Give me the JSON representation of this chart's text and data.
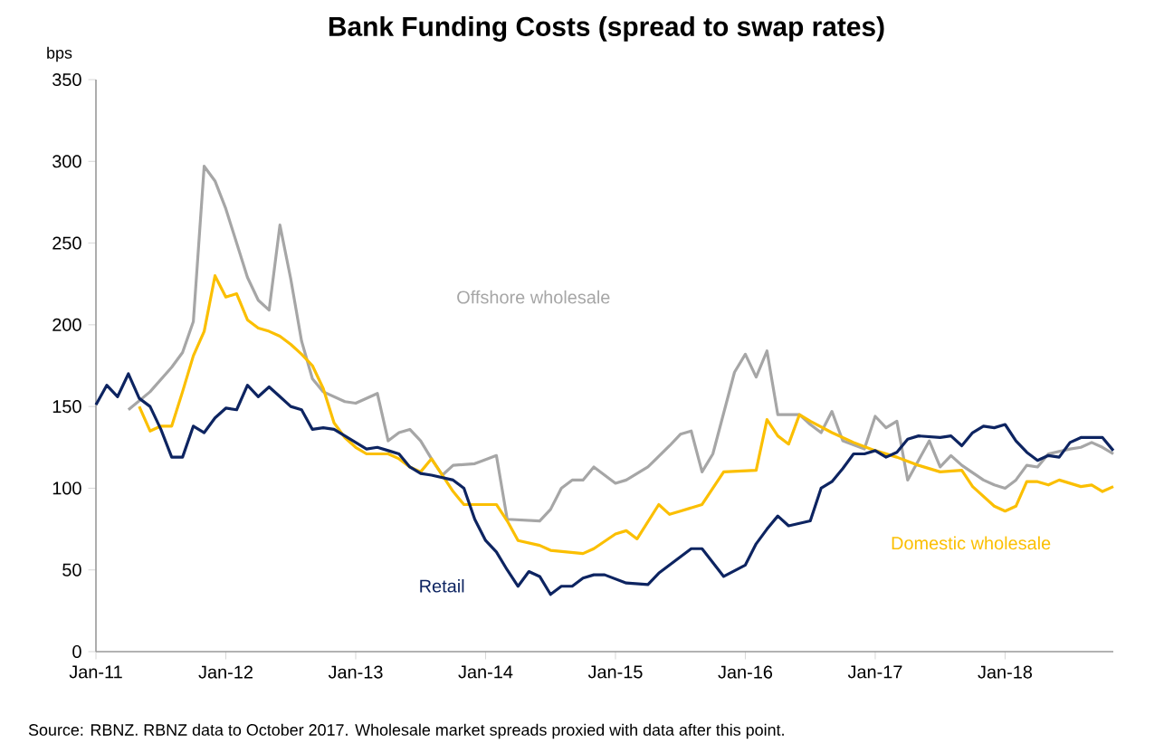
{
  "chart_data": {
    "type": "line",
    "title": "Bank Funding Costs (spread to swap rates)",
    "ylabel": "bps",
    "xlim": [
      "2011-01",
      "2018-11"
    ],
    "ylim": [
      0,
      350
    ],
    "xticks": [
      {
        "value": "2011-01",
        "label": "Jan-11"
      },
      {
        "value": "2012-01",
        "label": "Jan-12"
      },
      {
        "value": "2013-01",
        "label": "Jan-13"
      },
      {
        "value": "2014-01",
        "label": "Jan-14"
      },
      {
        "value": "2015-01",
        "label": "Jan-15"
      },
      {
        "value": "2016-01",
        "label": "Jan-16"
      },
      {
        "value": "2017-01",
        "label": "Jan-17"
      },
      {
        "value": "2018-01",
        "label": "Jan-18"
      }
    ],
    "yticks": [
      0,
      50,
      100,
      150,
      200,
      250,
      300,
      350
    ],
    "grid": false,
    "legend": false,
    "marker": "none",
    "line_style": "solid",
    "series": [
      {
        "name": "Offshore wholesale",
        "color": "#a6a6a6",
        "x": [
          "2011-04",
          "2011-06",
          "2011-08",
          "2011-09",
          "2011-10",
          "2011-11",
          "2011-12",
          "2012-01",
          "2012-02",
          "2012-03",
          "2012-04",
          "2012-05",
          "2012-06",
          "2012-07",
          "2012-08",
          "2012-09",
          "2012-10",
          "2012-12",
          "2013-01",
          "2013-03",
          "2013-04",
          "2013-05",
          "2013-06",
          "2013-07",
          "2013-08",
          "2013-09",
          "2013-10",
          "2013-12",
          "2014-02",
          "2014-03",
          "2014-06",
          "2014-07",
          "2014-08",
          "2014-09",
          "2014-10",
          "2014-11",
          "2015-01",
          "2015-02",
          "2015-04",
          "2015-06",
          "2015-07",
          "2015-08",
          "2015-09",
          "2015-10",
          "2015-12",
          "2016-01",
          "2016-02",
          "2016-03",
          "2016-04",
          "2016-06",
          "2016-07",
          "2016-08",
          "2016-09",
          "2016-10",
          "2016-12",
          "2017-01",
          "2017-02",
          "2017-03",
          "2017-04",
          "2017-06",
          "2017-07",
          "2017-08",
          "2017-09",
          "2017-11",
          "2017-12",
          "2018-01",
          "2018-02",
          "2018-03",
          "2018-04",
          "2018-05",
          "2018-07",
          "2018-08",
          "2018-09",
          "2018-10",
          "2018-11"
        ],
        "values": [
          148,
          159,
          174,
          183,
          202,
          297,
          288,
          271,
          250,
          229,
          215,
          209,
          261,
          228,
          190,
          167,
          159,
          153,
          152,
          158,
          129,
          134,
          136,
          129,
          118,
          108,
          114,
          115,
          120,
          81,
          80,
          87,
          100,
          105,
          105,
          113,
          103,
          105,
          113,
          126,
          133,
          135,
          110,
          121,
          171,
          182,
          168,
          184,
          145,
          145,
          139,
          134,
          147,
          129,
          124,
          144,
          137,
          141,
          105,
          129,
          113,
          120,
          114,
          105,
          102,
          100,
          105,
          114,
          113,
          121,
          124,
          125,
          128,
          125,
          121
        ]
      },
      {
        "name": "Domestic wholesale",
        "color": "#fbbf00",
        "x": [
          "2011-05",
          "2011-06",
          "2011-07",
          "2011-08",
          "2011-09",
          "2011-10",
          "2011-11",
          "2011-12",
          "2012-01",
          "2012-02",
          "2012-03",
          "2012-04",
          "2012-05",
          "2012-06",
          "2012-07",
          "2012-08",
          "2012-09",
          "2012-10",
          "2012-11",
          "2012-12",
          "2013-01",
          "2013-02",
          "2013-04",
          "2013-05",
          "2013-06",
          "2013-07",
          "2013-08",
          "2013-09",
          "2013-10",
          "2013-11",
          "2014-02",
          "2014-03",
          "2014-04",
          "2014-06",
          "2014-07",
          "2014-10",
          "2014-11",
          "2015-01",
          "2015-02",
          "2015-03",
          "2015-05",
          "2015-06",
          "2015-07",
          "2015-09",
          "2015-11",
          "2016-02",
          "2016-03",
          "2016-04",
          "2016-05",
          "2016-06",
          "2016-07",
          "2016-09",
          "2016-11",
          "2017-01",
          "2017-03",
          "2017-05",
          "2017-07",
          "2017-09",
          "2017-10",
          "2017-12",
          "2018-01",
          "2018-02",
          "2018-03",
          "2018-04",
          "2018-05",
          "2018-06",
          "2018-08",
          "2018-09",
          "2018-10",
          "2018-11"
        ],
        "values": [
          150,
          135,
          138,
          138,
          159,
          181,
          196,
          230,
          217,
          219,
          203,
          198,
          196,
          193,
          188,
          182,
          175,
          161,
          140,
          131,
          125,
          121,
          121,
          118,
          113,
          110,
          118,
          108,
          98,
          90,
          90,
          80,
          68,
          65,
          62,
          60,
          63,
          72,
          74,
          69,
          90,
          84,
          86,
          90,
          110,
          111,
          142,
          132,
          127,
          145,
          141,
          134,
          128,
          123,
          119,
          114,
          110,
          111,
          101,
          89,
          86,
          89,
          104,
          104,
          102,
          105,
          101,
          102,
          98,
          101
        ]
      },
      {
        "name": "Retail",
        "color": "#0d2461",
        "x": [
          "2011-01",
          "2011-02",
          "2011-03",
          "2011-04",
          "2011-05",
          "2011-06",
          "2011-07",
          "2011-08",
          "2011-09",
          "2011-10",
          "2011-11",
          "2011-12",
          "2012-01",
          "2012-02",
          "2012-03",
          "2012-04",
          "2012-05",
          "2012-06",
          "2012-07",
          "2012-08",
          "2012-09",
          "2012-10",
          "2012-11",
          "2012-12",
          "2013-01",
          "2013-02",
          "2013-03",
          "2013-04",
          "2013-05",
          "2013-06",
          "2013-07",
          "2013-08",
          "2013-10",
          "2013-11",
          "2013-12",
          "2014-01",
          "2014-02",
          "2014-03",
          "2014-04",
          "2014-05",
          "2014-06",
          "2014-07",
          "2014-08",
          "2014-09",
          "2014-10",
          "2014-11",
          "2014-12",
          "2015-02",
          "2015-04",
          "2015-05",
          "2015-06",
          "2015-08",
          "2015-09",
          "2015-11",
          "2016-01",
          "2016-02",
          "2016-03",
          "2016-04",
          "2016-05",
          "2016-07",
          "2016-08",
          "2016-09",
          "2016-10",
          "2016-11",
          "2016-12",
          "2017-01",
          "2017-02",
          "2017-03",
          "2017-04",
          "2017-05",
          "2017-07",
          "2017-08",
          "2017-09",
          "2017-10",
          "2017-11",
          "2017-12",
          "2018-01",
          "2018-02",
          "2018-03",
          "2018-04",
          "2018-05",
          "2018-06",
          "2018-07",
          "2018-08",
          "2018-10",
          "2018-11"
        ],
        "values": [
          151,
          163,
          156,
          170,
          155,
          150,
          136,
          119,
          119,
          138,
          134,
          143,
          149,
          148,
          163,
          156,
          162,
          156,
          150,
          148,
          136,
          137,
          136,
          132,
          128,
          124,
          125,
          123,
          121,
          113,
          109,
          108,
          105,
          100,
          81,
          68,
          61,
          50,
          40,
          49,
          46,
          35,
          40,
          40,
          45,
          47,
          47,
          42,
          41,
          48,
          53,
          63,
          63,
          46,
          53,
          66,
          75,
          83,
          77,
          80,
          100,
          104,
          112,
          121,
          121,
          123,
          119,
          122,
          130,
          132,
          131,
          132,
          126,
          134,
          138,
          137,
          139,
          129,
          122,
          117,
          120,
          119,
          128,
          131,
          131,
          123
        ]
      }
    ],
    "annotations": [
      "Source: RBNZ.  RBNZ data to October 2017.  Wholesale market spreads proxied with data after this point."
    ]
  }
}
